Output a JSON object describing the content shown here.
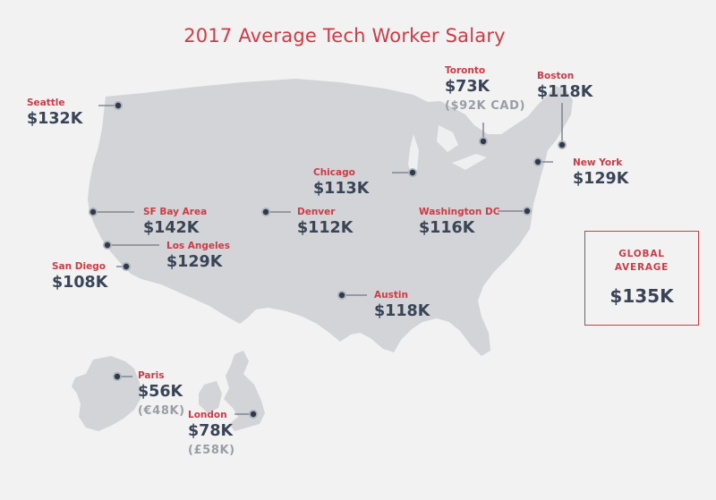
{
  "title": "2017 Average Tech Worker Salary",
  "colors": {
    "accent": "#d03a45",
    "salary_text": "#394556",
    "local_text": "#9a9ea4",
    "land": "#d3d4d7",
    "background": "#f2f2f3"
  },
  "global": {
    "label": "GLOBAL AVERAGE",
    "value": "$135K"
  },
  "cities": [
    {
      "id": "seattle",
      "name": "Seattle",
      "salary": "$132K"
    },
    {
      "id": "sf-bay-area",
      "name": "SF Bay Area",
      "salary": "$142K"
    },
    {
      "id": "los-angeles",
      "name": "Los Angeles",
      "salary": "$129K"
    },
    {
      "id": "san-diego",
      "name": "San Diego",
      "salary": "$108K"
    },
    {
      "id": "denver",
      "name": "Denver",
      "salary": "$112K"
    },
    {
      "id": "chicago",
      "name": "Chicago",
      "salary": "$113K"
    },
    {
      "id": "toronto",
      "name": "Toronto",
      "salary": "$73K",
      "local": "($92K CAD)"
    },
    {
      "id": "boston",
      "name": "Boston",
      "salary": "$118K"
    },
    {
      "id": "new-york",
      "name": "New York",
      "salary": "$129K"
    },
    {
      "id": "washington-dc",
      "name": "Washington DC",
      "salary": "$116K"
    },
    {
      "id": "austin",
      "name": "Austin",
      "salary": "$118K"
    },
    {
      "id": "paris",
      "name": "Paris",
      "salary": "$56K",
      "local": "(€48K)"
    },
    {
      "id": "london",
      "name": "London",
      "salary": "$78K",
      "local": "(£58K)"
    }
  ]
}
